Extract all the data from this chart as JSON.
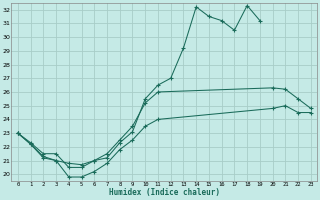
{
  "xlabel": "Humidex (Indice chaleur)",
  "background_color": "#c5eae6",
  "grid_color": "#a8cdc8",
  "line_color": "#1a6b5a",
  "xlim": [
    0,
    23
  ],
  "ylim": [
    19.5,
    32.5
  ],
  "yticks": [
    20,
    21,
    22,
    23,
    24,
    25,
    26,
    27,
    28,
    29,
    30,
    31,
    32
  ],
  "xticks": [
    0,
    1,
    2,
    3,
    4,
    5,
    6,
    7,
    8,
    9,
    10,
    11,
    12,
    13,
    14,
    15,
    16,
    17,
    18,
    19,
    20,
    21,
    22,
    23
  ],
  "s1_x": [
    0,
    1,
    2,
    3,
    4,
    5,
    6,
    7,
    8,
    9,
    10,
    11,
    12,
    13,
    14,
    15,
    16,
    17,
    18,
    19
  ],
  "s1_y": [
    23.0,
    22.2,
    21.3,
    21.0,
    20.8,
    20.7,
    21.0,
    21.2,
    22.3,
    23.1,
    25.5,
    26.5,
    27.0,
    29.2,
    32.2,
    31.5,
    31.2,
    30.5,
    32.3,
    31.2
  ],
  "s2_x": [
    0,
    1,
    2,
    3,
    4,
    5,
    6,
    7,
    8,
    9,
    10,
    11,
    20,
    21,
    22,
    23
  ],
  "s2_y": [
    23.0,
    22.3,
    21.5,
    21.5,
    20.5,
    20.5,
    21.0,
    21.5,
    22.5,
    23.5,
    25.2,
    26.0,
    26.3,
    26.2,
    25.5,
    24.8
  ],
  "s3_x": [
    0,
    1,
    2,
    3,
    4,
    5,
    6,
    7,
    8,
    9,
    10,
    11,
    20,
    21,
    22,
    23
  ],
  "s3_y": [
    23.0,
    22.2,
    21.2,
    21.0,
    19.8,
    19.8,
    20.2,
    20.8,
    21.8,
    22.5,
    23.5,
    24.0,
    24.8,
    25.0,
    24.5,
    24.5
  ]
}
